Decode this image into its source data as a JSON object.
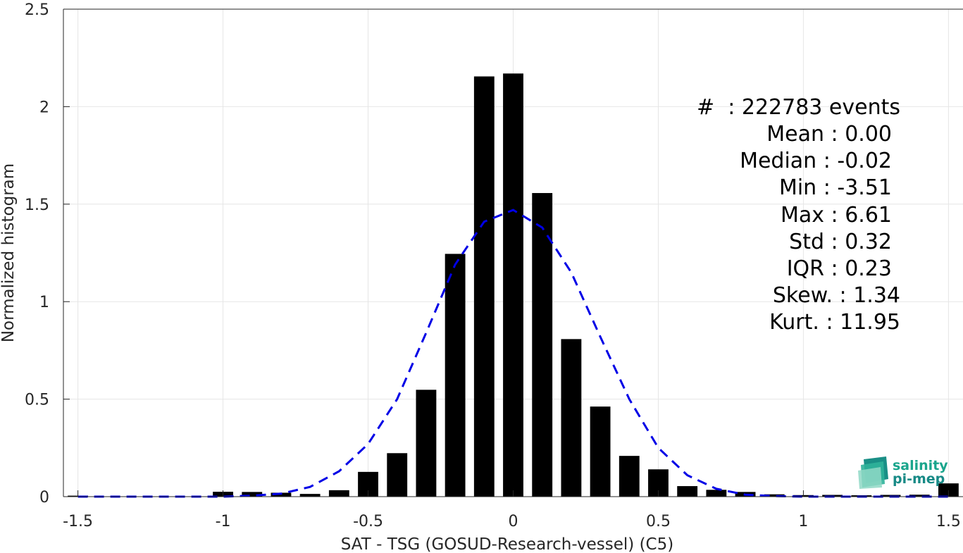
{
  "chart_data": {
    "type": "bar",
    "xlabel": "SAT - TSG (GOSUD-Research-vessel) (C5)",
    "ylabel": "Normalized histogram",
    "xlim": [
      -1.55,
      1.55
    ],
    "ylim": [
      0,
      2.5
    ],
    "grid": true,
    "x_ticks": [
      -1.5,
      -1,
      -0.5,
      0,
      0.5,
      1,
      1.5
    ],
    "x_tick_labels": [
      "-1.5",
      "-1",
      "-0.5",
      "0",
      "0.5",
      "1",
      "1.5"
    ],
    "y_ticks": [
      0,
      0.5,
      1,
      1.5,
      2,
      2.5
    ],
    "y_tick_labels": [
      "0",
      "0.5",
      "1",
      "1.5",
      "2",
      "2.5"
    ],
    "bar_width": 0.07,
    "series": [
      {
        "kind": "bar",
        "color": "#000000",
        "x": [
          -1.5,
          -1.0,
          -0.9,
          -0.8,
          -0.7,
          -0.6,
          -0.5,
          -0.4,
          -0.3,
          -0.2,
          -0.1,
          0.0,
          0.1,
          0.2,
          0.3,
          0.4,
          0.5,
          0.6,
          0.7,
          0.8,
          0.9,
          1.0,
          1.1,
          1.2,
          1.3,
          1.4,
          1.5
        ],
        "values": [
          0.005,
          0.025,
          0.024,
          0.02,
          0.014,
          0.033,
          0.127,
          0.223,
          0.548,
          1.245,
          2.155,
          2.17,
          1.557,
          0.808,
          0.462,
          0.209,
          0.14,
          0.054,
          0.035,
          0.024,
          0.012,
          0.008,
          0.009,
          0.007,
          0.009,
          0.01,
          0.068
        ]
      },
      {
        "kind": "line",
        "style": "dashed",
        "color": "#0000e6",
        "x": [
          -1.5,
          -1.2,
          -1.0,
          -0.9,
          -0.8,
          -0.7,
          -0.6,
          -0.5,
          -0.4,
          -0.3,
          -0.2,
          -0.1,
          0.0,
          0.1,
          0.2,
          0.3,
          0.4,
          0.5,
          0.6,
          0.7,
          0.8,
          0.9,
          1.0,
          1.2,
          1.5
        ],
        "values": [
          0.0,
          0.0,
          0.0,
          0.005,
          0.015,
          0.05,
          0.13,
          0.27,
          0.5,
          0.84,
          1.19,
          1.41,
          1.47,
          1.38,
          1.15,
          0.82,
          0.5,
          0.25,
          0.11,
          0.04,
          0.01,
          0.003,
          0.0,
          0.0,
          0.0
        ]
      }
    ],
    "stats": [
      "#  : 222783 events",
      "Mean : 0.00",
      "Median : -0.02",
      "Min : -3.51",
      "Max : 6.61",
      "Std : 0.32",
      "IQR : 0.23",
      "Skew. : 1.34",
      "Kurt. : 11.95"
    ]
  },
  "logo": {
    "line1": "salinity",
    "line2": "pi-mep",
    "color1": "#1aa58c",
    "color2": "#178a86"
  }
}
